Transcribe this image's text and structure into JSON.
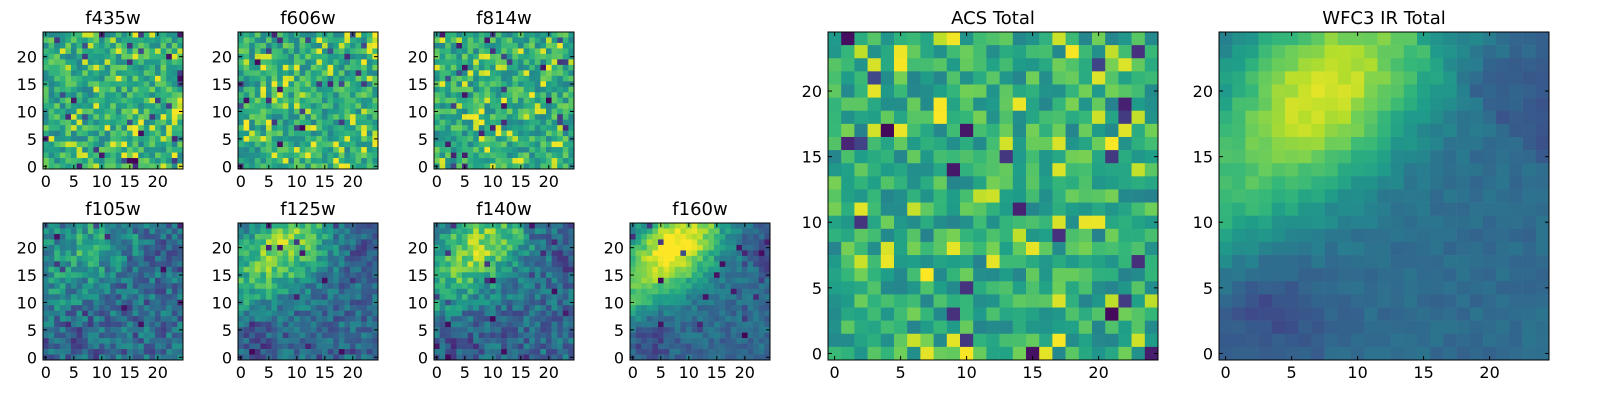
{
  "chart_data": [
    {
      "type": "heatmap",
      "title": "f435w",
      "pattern": "noise",
      "seed": 11,
      "xticks": [
        0,
        5,
        10,
        15,
        20
      ],
      "yticks": [
        0,
        5,
        10,
        15,
        20
      ],
      "xlim": [
        -0.5,
        24.5
      ],
      "ylim": [
        -0.5,
        24.5
      ],
      "grid_size": 25
    },
    {
      "type": "heatmap",
      "title": "f606w",
      "pattern": "noise",
      "seed": 23,
      "xticks": [
        0,
        5,
        10,
        15,
        20
      ],
      "yticks": [
        0,
        5,
        10,
        15,
        20
      ],
      "xlim": [
        -0.5,
        24.5
      ],
      "ylim": [
        -0.5,
        24.5
      ],
      "grid_size": 25
    },
    {
      "type": "heatmap",
      "title": "f814w",
      "pattern": "noise",
      "seed": 37,
      "xticks": [
        0,
        5,
        10,
        15,
        20
      ],
      "yticks": [
        0,
        5,
        10,
        15,
        20
      ],
      "xlim": [
        -0.5,
        24.5
      ],
      "ylim": [
        -0.5,
        24.5
      ],
      "grid_size": 25
    },
    {
      "type": "heatmap",
      "title": "f105w",
      "pattern": "weak-diagonal",
      "seed": 41,
      "xticks": [
        0,
        5,
        10,
        15,
        20
      ],
      "yticks": [
        0,
        5,
        10,
        15,
        20
      ],
      "xlim": [
        -0.5,
        24.5
      ],
      "ylim": [
        -0.5,
        24.5
      ],
      "grid_size": 25
    },
    {
      "type": "heatmap",
      "title": "f125w",
      "pattern": "diagonal",
      "seed": 53,
      "xticks": [
        0,
        5,
        10,
        15,
        20
      ],
      "yticks": [
        0,
        5,
        10,
        15,
        20
      ],
      "xlim": [
        -0.5,
        24.5
      ],
      "ylim": [
        -0.5,
        24.5
      ],
      "grid_size": 25
    },
    {
      "type": "heatmap",
      "title": "f140w",
      "pattern": "diagonal",
      "seed": 67,
      "xticks": [
        0,
        5,
        10,
        15,
        20
      ],
      "yticks": [
        0,
        5,
        10,
        15,
        20
      ],
      "xlim": [
        -0.5,
        24.5
      ],
      "ylim": [
        -0.5,
        24.5
      ],
      "grid_size": 25
    },
    {
      "type": "heatmap",
      "title": "f160w",
      "pattern": "strong-diagonal",
      "seed": 79,
      "xticks": [
        0,
        5,
        10,
        15,
        20
      ],
      "yticks": [
        0,
        5,
        10,
        15,
        20
      ],
      "xlim": [
        -0.5,
        24.5
      ],
      "ylim": [
        -0.5,
        24.5
      ],
      "grid_size": 25
    },
    {
      "type": "heatmap",
      "title": "ACS Total",
      "pattern": "noise",
      "seed": 97,
      "xticks": [
        0,
        5,
        10,
        15,
        20
      ],
      "yticks": [
        0,
        5,
        10,
        15,
        20
      ],
      "xlim": [
        -0.5,
        24.5
      ],
      "ylim": [
        -0.5,
        24.5
      ],
      "grid_size": 25
    },
    {
      "type": "heatmap",
      "title": "WFC3 IR Total",
      "pattern": "smooth-diagonal",
      "seed": 113,
      "xticks": [
        0,
        5,
        10,
        15,
        20
      ],
      "yticks": [
        0,
        5,
        10,
        15,
        20
      ],
      "xlim": [
        -0.5,
        24.5
      ],
      "ylim": [
        -0.5,
        24.5
      ],
      "grid_size": 25
    }
  ],
  "colormap": [
    "#440154",
    "#482878",
    "#3e4a89",
    "#31688e",
    "#26828e",
    "#1f9e89",
    "#35b779",
    "#6ece58",
    "#b5de2b",
    "#fde725"
  ]
}
